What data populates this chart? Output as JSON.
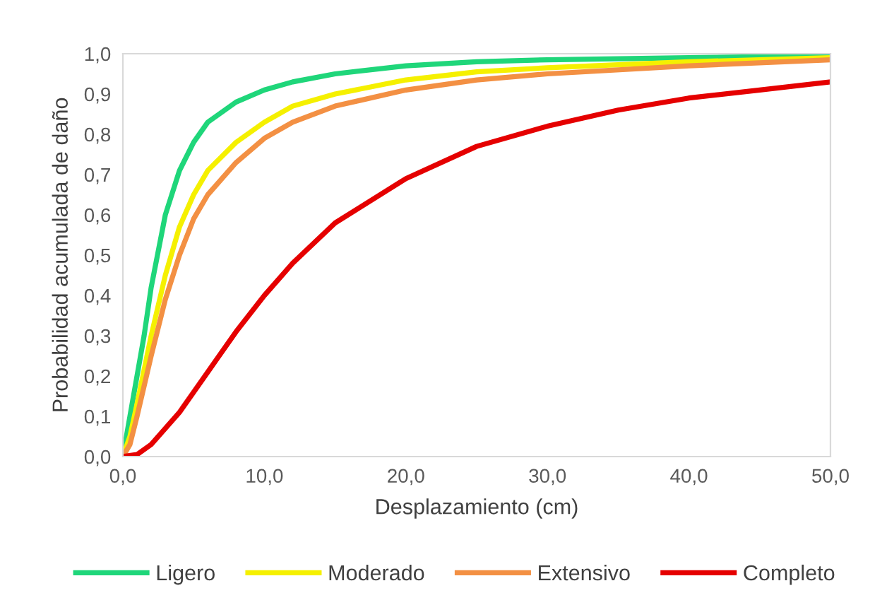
{
  "chart_data": {
    "type": "line",
    "xlabel": "Desplazamiento (cm)",
    "ylabel": "Probabilidad acumulada de daño",
    "xlim": [
      0,
      50
    ],
    "xticks": [
      {
        "value": 0,
        "label": "0,0"
      },
      {
        "value": 10,
        "label": "10,0"
      },
      {
        "value": 20,
        "label": "20,0"
      },
      {
        "value": 30,
        "label": "30,0"
      },
      {
        "value": 40,
        "label": "40,0"
      },
      {
        "value": 50,
        "label": "50,0"
      }
    ],
    "ylim": [
      0,
      1
    ],
    "yticks": [
      {
        "value": 0,
        "label": "0,0"
      },
      {
        "value": 0.1,
        "label": "0,1"
      },
      {
        "value": 0.2,
        "label": "0,2"
      },
      {
        "value": 0.3,
        "label": "0,3"
      },
      {
        "value": 0.4,
        "label": "0,4"
      },
      {
        "value": 0.5,
        "label": "0,5"
      },
      {
        "value": 0.6,
        "label": "0,6"
      },
      {
        "value": 0.7,
        "label": "0,7"
      },
      {
        "value": 0.8,
        "label": "0,8"
      },
      {
        "value": 0.9,
        "label": "0,9"
      },
      {
        "value": 1,
        "label": "1,0"
      }
    ],
    "grid": false,
    "legend": "bottom",
    "marker": "none",
    "line_style": "solid",
    "series": [
      {
        "name": "Ligero",
        "color": "#1fd67a",
        "x": [
          0,
          0.5,
          1,
          1.5,
          2,
          3,
          4,
          5,
          6,
          8,
          10,
          12,
          15,
          20,
          25,
          30,
          40,
          50
        ],
        "values": [
          0,
          0.1,
          0.2,
          0.3,
          0.42,
          0.6,
          0.71,
          0.78,
          0.83,
          0.88,
          0.91,
          0.93,
          0.95,
          0.97,
          0.98,
          0.985,
          0.99,
          0.995
        ]
      },
      {
        "name": "Moderado",
        "color": "#f5f000",
        "x": [
          0,
          0.5,
          1,
          2,
          3,
          4,
          5,
          6,
          8,
          10,
          12,
          15,
          20,
          25,
          30,
          40,
          50
        ],
        "values": [
          0,
          0.05,
          0.13,
          0.3,
          0.45,
          0.57,
          0.65,
          0.71,
          0.78,
          0.83,
          0.87,
          0.9,
          0.935,
          0.955,
          0.965,
          0.98,
          0.99
        ]
      },
      {
        "name": "Extensivo",
        "color": "#f39043",
        "x": [
          0,
          0.5,
          1,
          2,
          3,
          4,
          5,
          6,
          8,
          10,
          12,
          15,
          20,
          25,
          30,
          40,
          50
        ],
        "values": [
          0,
          0.03,
          0.1,
          0.25,
          0.39,
          0.5,
          0.59,
          0.65,
          0.73,
          0.79,
          0.83,
          0.87,
          0.91,
          0.935,
          0.95,
          0.97,
          0.985
        ]
      },
      {
        "name": "Completo",
        "color": "#e50000",
        "x": [
          0,
          1,
          2,
          3,
          4,
          5,
          6,
          8,
          10,
          12,
          15,
          20,
          25,
          30,
          35,
          40,
          45,
          50
        ],
        "values": [
          0,
          0.005,
          0.03,
          0.07,
          0.11,
          0.16,
          0.21,
          0.31,
          0.4,
          0.48,
          0.58,
          0.69,
          0.77,
          0.82,
          0.86,
          0.89,
          0.91,
          0.93
        ]
      }
    ]
  }
}
